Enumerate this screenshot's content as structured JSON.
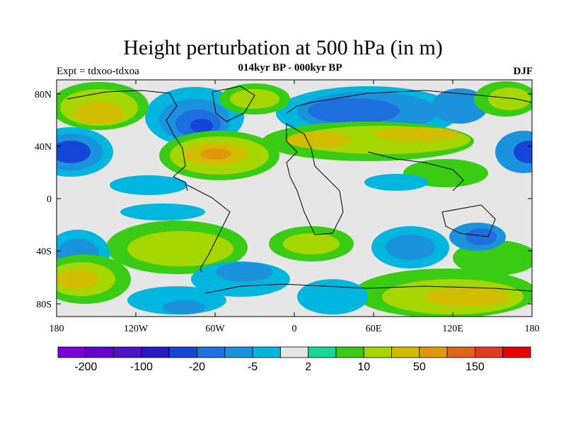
{
  "title": "Height perturbation at 500 hPa (in m)",
  "subtitle": "014kyr BP - 000kyr BP",
  "left_label": "Expt = tdxoo-tdxoa",
  "season_label": "DJF",
  "map": {
    "x_ticks": [
      {
        "label": "180"
      },
      {
        "label": "120W"
      },
      {
        "label": "60W"
      },
      {
        "label": "0"
      },
      {
        "label": "60E"
      },
      {
        "label": "120E"
      },
      {
        "label": "180"
      }
    ],
    "y_ticks": [
      {
        "label": "80N"
      },
      {
        "label": "40N"
      },
      {
        "label": "0"
      },
      {
        "label": "40S"
      },
      {
        "label": "80S"
      }
    ],
    "fill_background": "#e6e6e6"
  },
  "colorbar": {
    "colors": [
      "#7a00d6",
      "#6600cc",
      "#4b12c8",
      "#2a18c6",
      "#1646d8",
      "#1e6ee0",
      "#1a92dc",
      "#00b6de",
      "#e6e6e6",
      "#16d896",
      "#3acc14",
      "#a6d600",
      "#d2bc00",
      "#e2960a",
      "#e06414",
      "#e23c1e",
      "#e60000"
    ],
    "labels": [
      "-200",
      "-100",
      "-20",
      "-5",
      "2",
      "10",
      "50",
      "150"
    ]
  }
}
